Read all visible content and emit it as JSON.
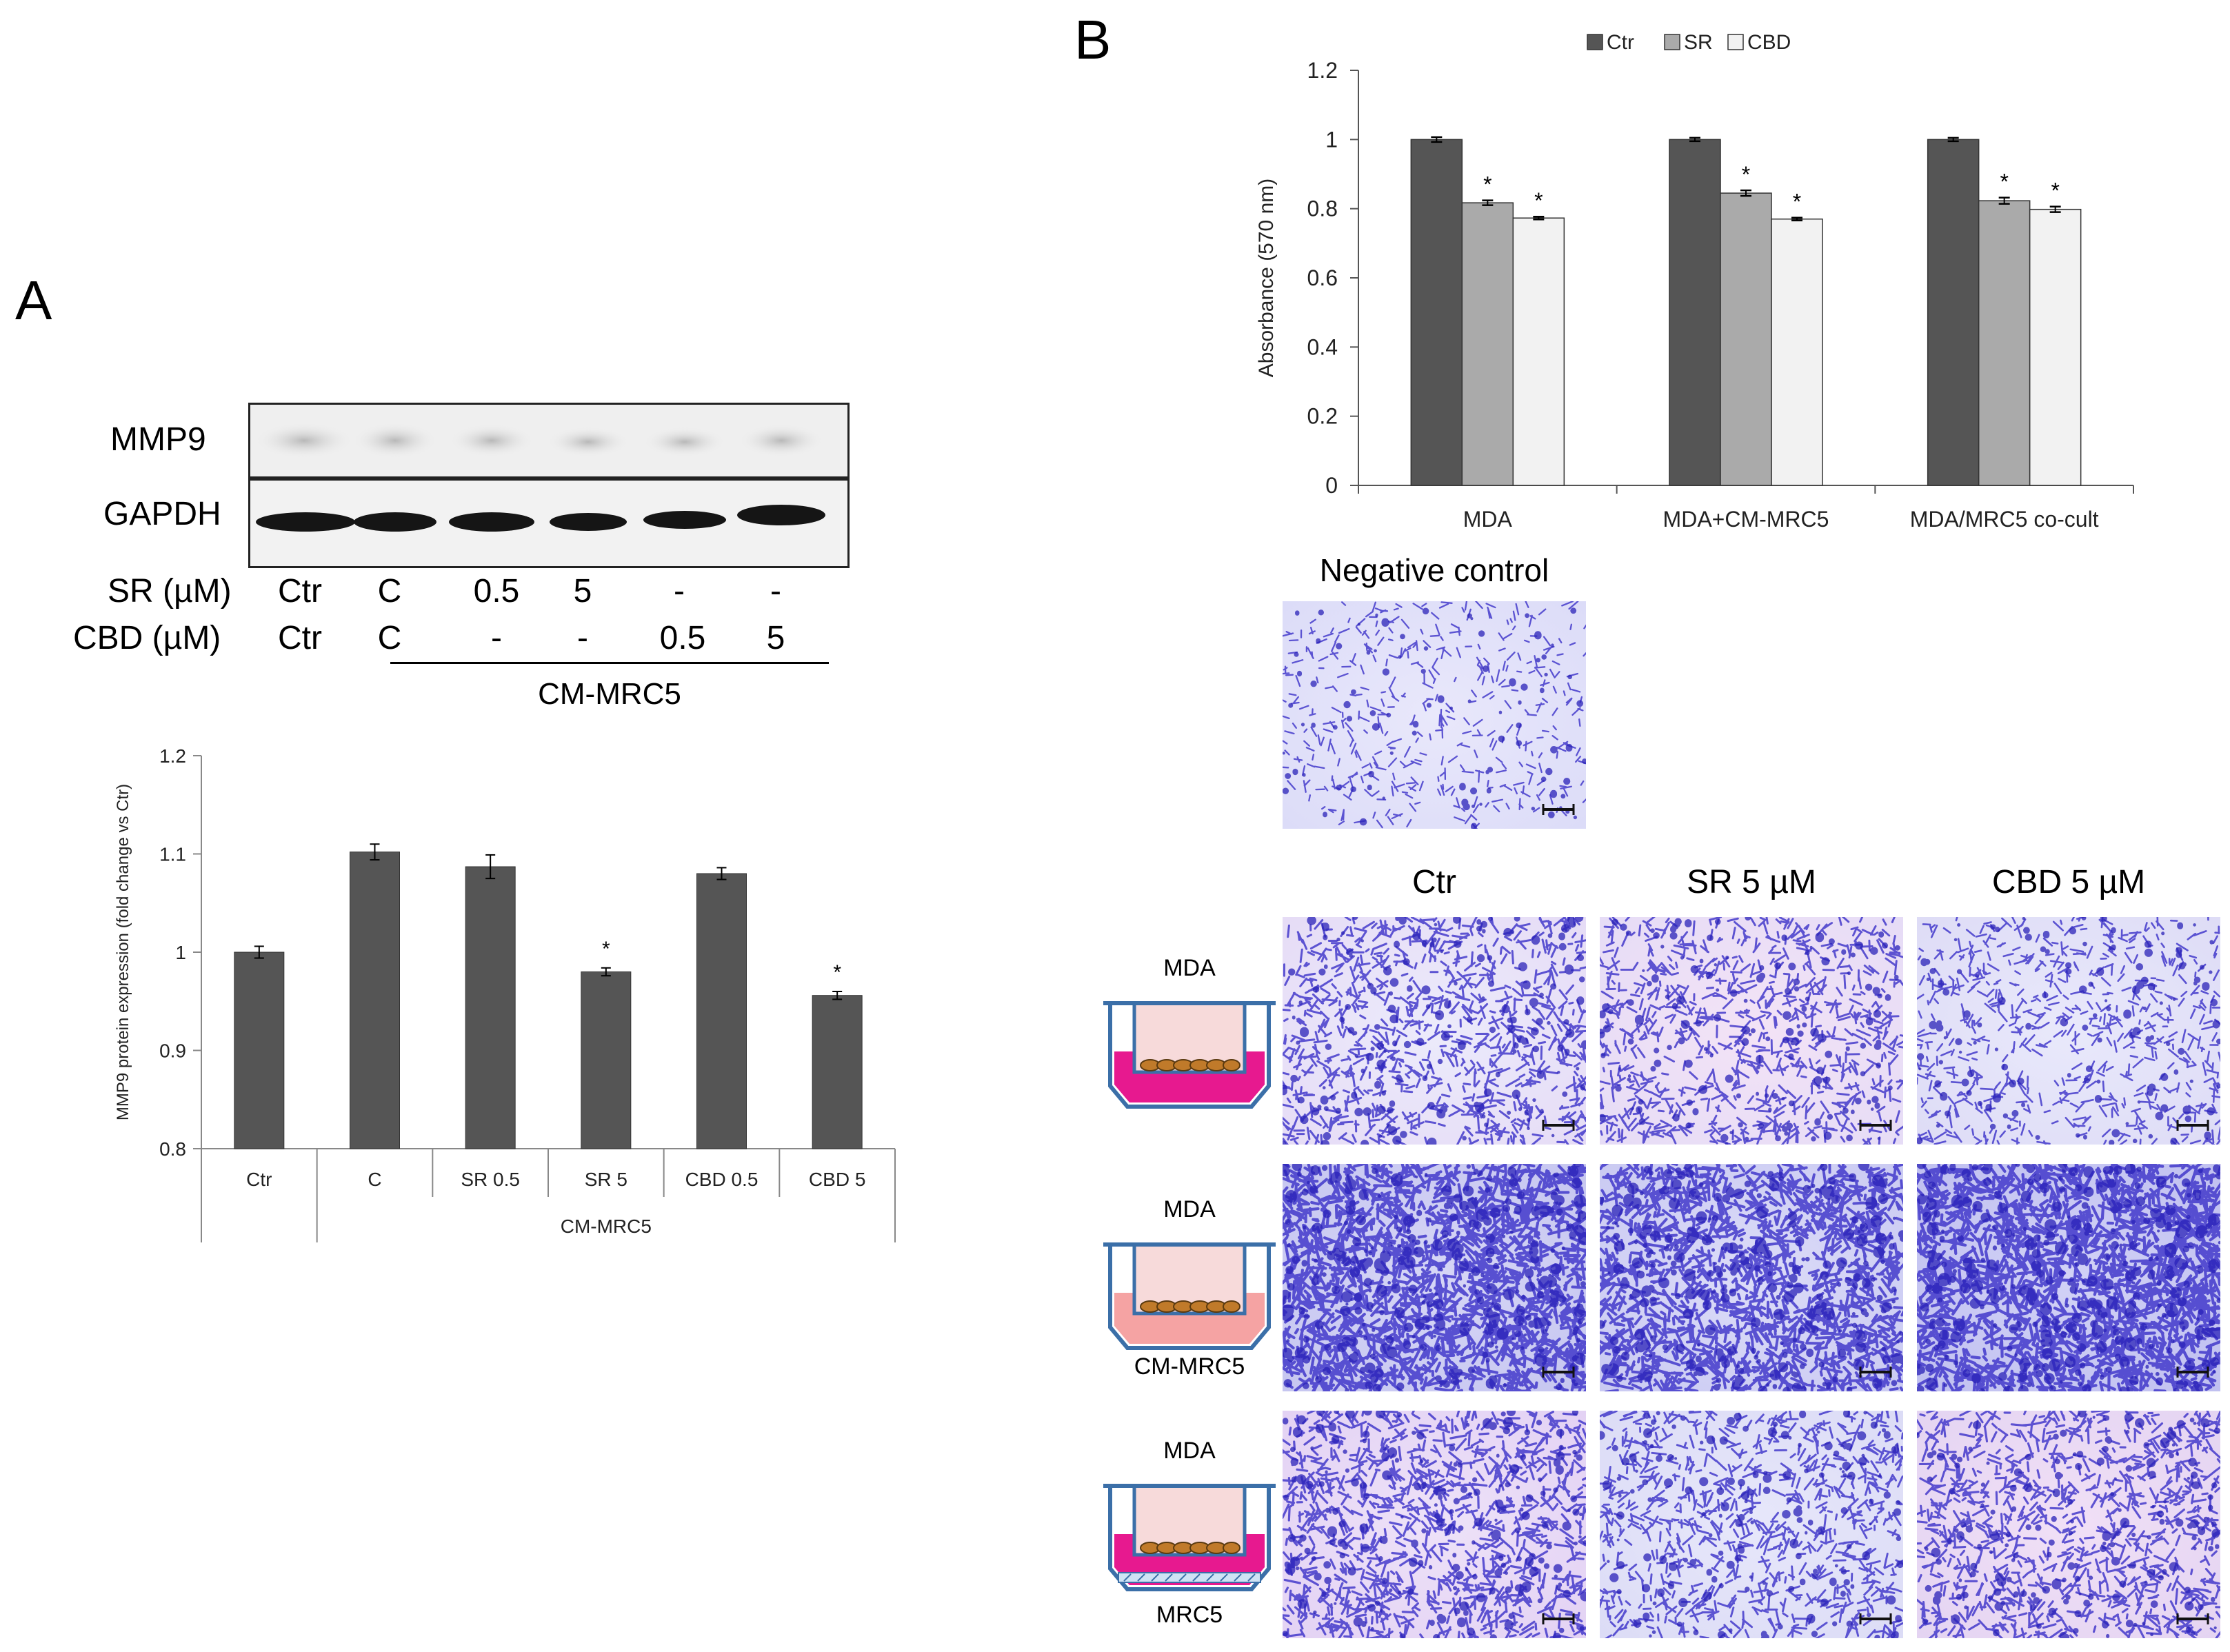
{
  "panel_a": {
    "letter": "A",
    "blot": {
      "rows": [
        "MMP9",
        "GAPDH"
      ],
      "sr_label": "SR (µM)",
      "cbd_label": "CBD (µM)",
      "sr_values": [
        "Ctr",
        "C",
        "0.5",
        "5",
        "-",
        "-"
      ],
      "cbd_values": [
        "Ctr",
        "C",
        "-",
        "-",
        "0.5",
        "5"
      ],
      "group_label": "CM-MRC5"
    }
  },
  "panel_b": {
    "letter": "B",
    "micrographs": {
      "negative_control_label": "Negative control",
      "column_labels": [
        "Ctr",
        "SR 5 µM",
        "CBD 5 µM"
      ],
      "rows": [
        {
          "top_label": "MDA",
          "bottom_label": ""
        },
        {
          "top_label": "MDA",
          "bottom_label": "CM-MRC5"
        },
        {
          "top_label": "MDA",
          "bottom_label": "MRC5"
        }
      ]
    }
  },
  "chart_data": [
    {
      "type": "bar",
      "title": "",
      "ylabel": "MMP9 protein expression (fold change vs Ctr)",
      "xlabel": "",
      "ylim": [
        0.8,
        1.2
      ],
      "yticks": [
        "0.8",
        "0.9",
        "1",
        "1.1",
        "1.2"
      ],
      "categories": [
        "Ctr",
        "C",
        "SR 0.5",
        "SR 5",
        "CBD 0.5",
        "CBD 5"
      ],
      "group_label": "CM-MRC5",
      "values": [
        1.0,
        1.102,
        1.087,
        0.98,
        1.08,
        0.956
      ],
      "errors": [
        0.006,
        0.008,
        0.012,
        0.004,
        0.006,
        0.004
      ],
      "significance": [
        "",
        "",
        "",
        "*",
        "",
        "*"
      ],
      "bar_color": "#555555"
    },
    {
      "type": "bar",
      "title": "",
      "ylabel": "Absorbance (570 nm)",
      "xlabel": "",
      "ylim": [
        0,
        1.2
      ],
      "yticks": [
        "0",
        "0.2",
        "0.4",
        "0.6",
        "0.8",
        "1",
        "1.2"
      ],
      "categories": [
        "MDA",
        "MDA+CM-MRC5",
        "MDA/MRC5 co-cult"
      ],
      "legend_position": "top",
      "series": [
        {
          "name": "Ctr",
          "values": [
            1.0,
            1.0,
            1.0
          ],
          "errors": [
            0.007,
            0.005,
            0.005
          ],
          "significance": [
            "",
            "",
            ""
          ],
          "color": "#555555"
        },
        {
          "name": "SR",
          "values": [
            0.817,
            0.845,
            0.823
          ],
          "errors": [
            0.007,
            0.008,
            0.009
          ],
          "significance": [
            "*",
            "*",
            "*"
          ],
          "color": "#aaaaaa"
        },
        {
          "name": "CBD",
          "values": [
            0.773,
            0.77,
            0.798
          ],
          "errors": [
            0.004,
            0.004,
            0.008
          ],
          "significance": [
            "*",
            "*",
            "*"
          ],
          "color": "#f2f2f2"
        }
      ]
    }
  ]
}
